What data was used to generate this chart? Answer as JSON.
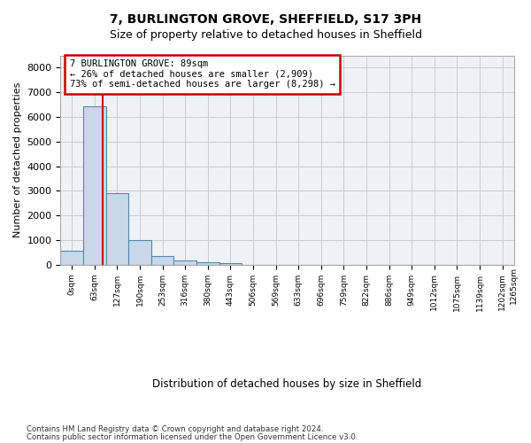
{
  "title_line1": "7, BURLINGTON GROVE, SHEFFIELD, S17 3PH",
  "title_line2": "Size of property relative to detached houses in Sheffield",
  "xlabel": "Distribution of detached houses by size in Sheffield",
  "ylabel": "Number of detached properties",
  "bar_values": [
    560,
    6420,
    2920,
    990,
    360,
    170,
    100,
    70,
    0,
    0,
    0,
    0,
    0,
    0,
    0,
    0,
    0,
    0,
    0,
    0
  ],
  "bar_labels": [
    "0sqm",
    "63sqm",
    "127sqm",
    "190sqm",
    "253sqm",
    "316sqm",
    "380sqm",
    "443sqm",
    "506sqm",
    "569sqm",
    "633sqm",
    "696sqm",
    "759sqm",
    "822sqm",
    "886sqm",
    "949sqm",
    "1012sqm",
    "1075sqm",
    "1139sqm",
    "1202sqm"
  ],
  "extra_tick_label": "1265sqm",
  "bar_color": "#c8d8e8",
  "bar_edge_color": "#5588aa",
  "ylim": [
    0,
    8500
  ],
  "yticks": [
    0,
    1000,
    2000,
    3000,
    4000,
    5000,
    6000,
    7000,
    8000
  ],
  "property_bin_index": 1,
  "annotation_title": "7 BURLINGTON GROVE: 89sqm",
  "annotation_line1": "← 26% of detached houses are smaller (2,909)",
  "annotation_line2": "73% of semi-detached houses are larger (8,298) →",
  "annotation_box_color": "#ffffff",
  "annotation_box_edge_color": "#cc0000",
  "vline_color": "#cc0000",
  "grid_color": "#cccccc",
  "background_color": "#eef2f7",
  "footer_line1": "Contains HM Land Registry data © Crown copyright and database right 2024.",
  "footer_line2": "Contains public sector information licensed under the Open Government Licence v3.0."
}
